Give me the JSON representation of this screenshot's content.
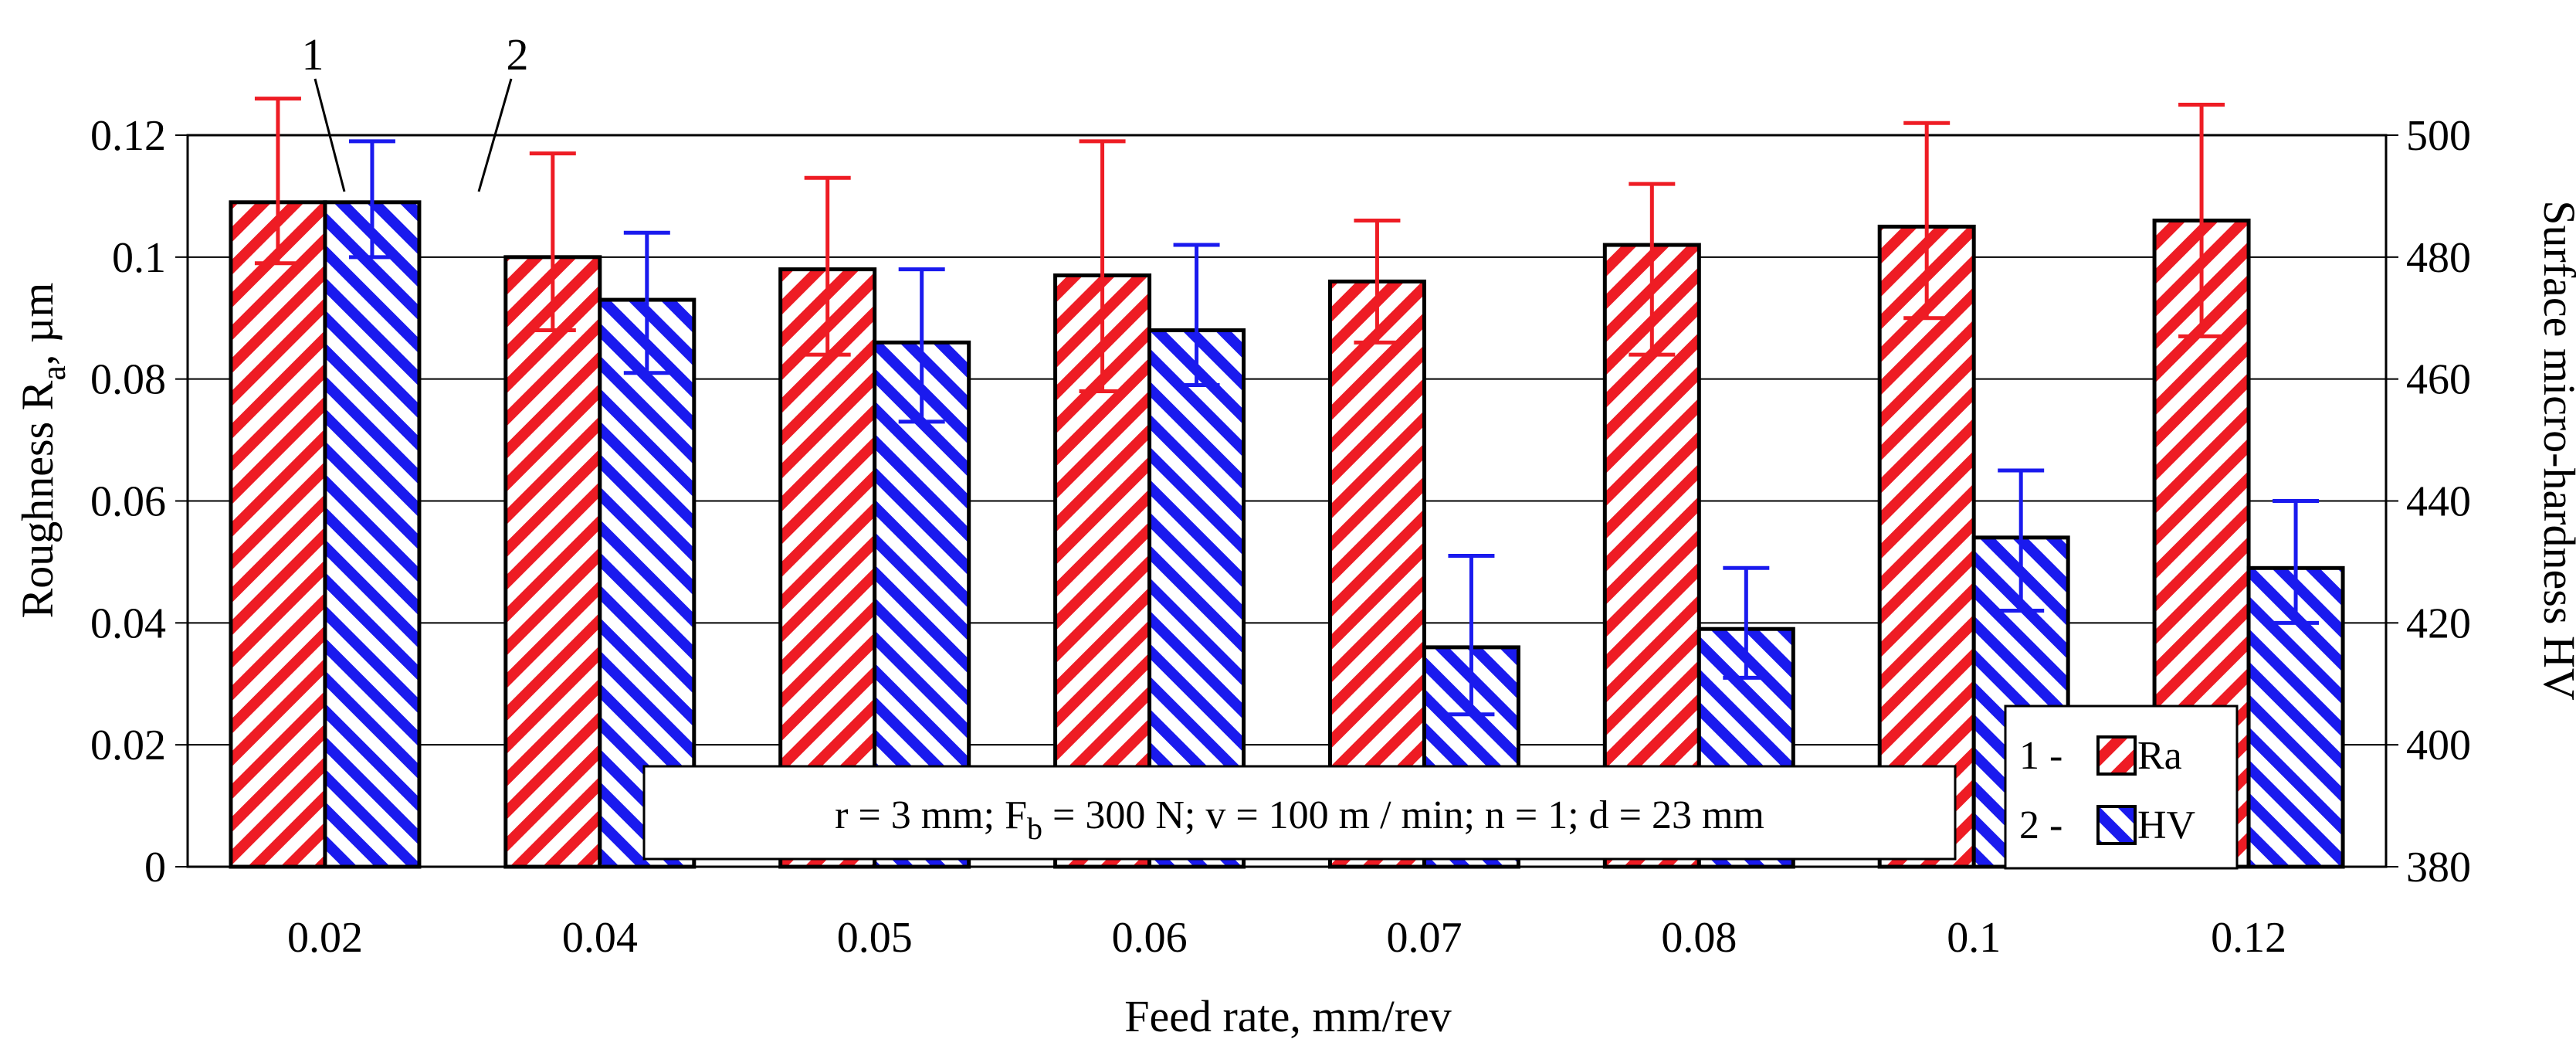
{
  "chart_data": {
    "type": "bar",
    "title": "",
    "categories": [
      "0.02",
      "0.04",
      "0.05",
      "0.06",
      "0.07",
      "0.08",
      "0.1",
      "0.12"
    ],
    "xlabel": "Feed rate, mm/rev",
    "ylabel_left": {
      "main": "Roughness R",
      "sub": "a",
      "tail": ", µm"
    },
    "ylabel_right": "Surface micro-hardness HV",
    "ylim_left": [
      0,
      0.12
    ],
    "yticks_left": [
      "0",
      "0.02",
      "0.04",
      "0.06",
      "0.08",
      "0.1",
      "0.12"
    ],
    "ylim_right": [
      380,
      500
    ],
    "yticks_right": [
      "380",
      "400",
      "420",
      "440",
      "460",
      "480",
      "500"
    ],
    "grid": "horizontal",
    "series": [
      {
        "name": "Ra",
        "axis": "left",
        "color": "#ee1c24",
        "values": [
          0.109,
          0.1,
          0.098,
          0.097,
          0.096,
          0.102,
          0.105,
          0.106
        ],
        "err_low": [
          0.099,
          0.088,
          0.084,
          0.078,
          0.086,
          0.084,
          0.09,
          0.087
        ],
        "err_high": [
          0.126,
          0.117,
          0.113,
          0.119,
          0.106,
          0.112,
          0.122,
          0.125
        ]
      },
      {
        "name": "HV",
        "axis": "right",
        "color": "#1a1aee",
        "values": [
          489.0,
          473.0,
          466.0,
          468.0,
          416.0,
          419.0,
          434.0,
          429.0
        ],
        "err_low": [
          480.0,
          461.0,
          453.0,
          459.0,
          405.0,
          411.0,
          422.0,
          420.0
        ],
        "err_high": [
          499.0,
          484.0,
          478.0,
          482.0,
          431.0,
          429.0,
          445.0,
          440.0
        ]
      }
    ],
    "callouts": [
      "1",
      "2"
    ],
    "legend": {
      "placement": "bottom-right",
      "entries": [
        {
          "prefix": "1 -",
          "label": "Ra"
        },
        {
          "prefix": "2 -",
          "label": "HV"
        }
      ]
    },
    "annotation": {
      "parts": [
        "r = 3 mm; F",
        "b",
        " = 300 N; v = 100  m / min; n = 1; d = 23 mm"
      ]
    }
  }
}
